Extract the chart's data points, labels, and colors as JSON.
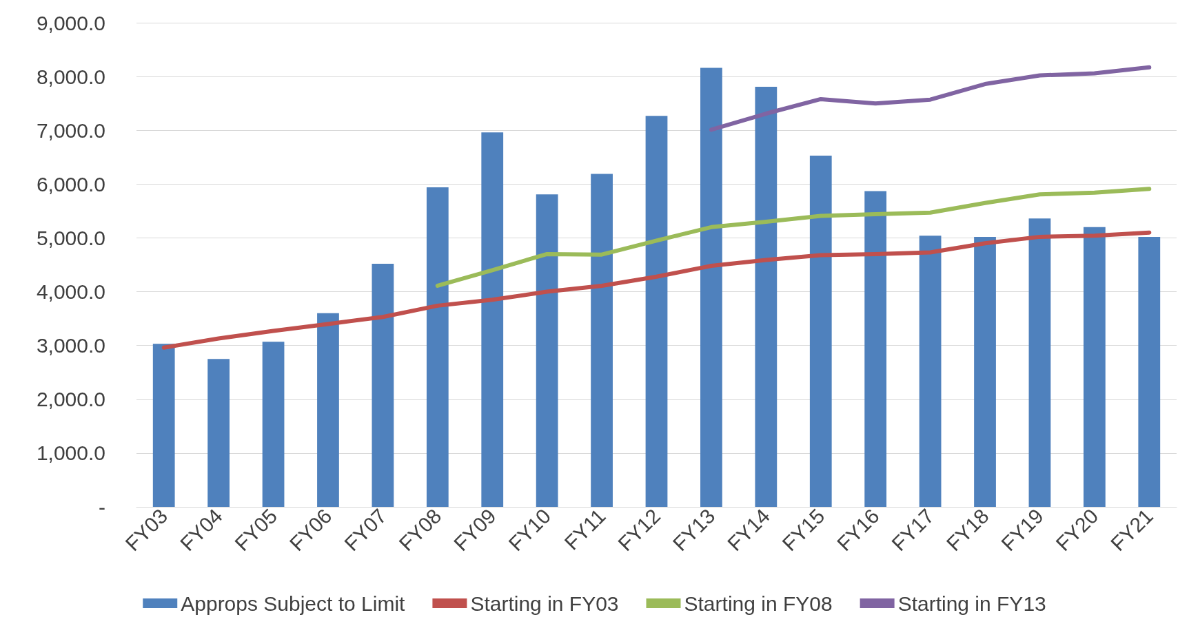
{
  "chart_data": {
    "type": "bar",
    "categories": [
      "FY03",
      "FY04",
      "FY05",
      "FY06",
      "FY07",
      "FY08",
      "FY09",
      "FY10",
      "FY11",
      "FY12",
      "FY13",
      "FY14",
      "FY15",
      "FY16",
      "FY17",
      "FY18",
      "FY19",
      "FY20",
      "FY21"
    ],
    "series": [
      {
        "name": "Approps Subject to Limit",
        "color": "#4f81bd",
        "values": [
          3030,
          2750,
          3070,
          3600,
          4520,
          5940,
          6960,
          5810,
          6190,
          7270,
          8160,
          7810,
          6530,
          5870,
          5040,
          5020,
          5360,
          5200,
          5020
        ]
      },
      {
        "name": "Starting in FY03",
        "type": "line",
        "color": "#c0504d",
        "values": [
          2960,
          3130,
          3270,
          3400,
          3530,
          3740,
          3850,
          4000,
          4110,
          4280,
          4480,
          4590,
          4680,
          4700,
          4730,
          4900,
          5020,
          5040,
          5100
        ]
      },
      {
        "name": "Starting in FY08",
        "type": "line",
        "color": "#9bbb59",
        "values": [
          null,
          null,
          null,
          null,
          null,
          4110,
          4400,
          4700,
          4690,
          4950,
          5200,
          5300,
          5410,
          5440,
          5470,
          5650,
          5810,
          5840,
          5910
        ]
      },
      {
        "name": "Starting in FY13",
        "type": "line",
        "color": "#8064a2",
        "values": [
          null,
          null,
          null,
          null,
          null,
          null,
          null,
          null,
          null,
          null,
          7010,
          7310,
          7580,
          7500,
          7570,
          7860,
          8020,
          8060,
          8170
        ]
      }
    ],
    "ylim": [
      0,
      9000
    ],
    "yticks": [
      {
        "value": 0,
        "label": "-"
      },
      {
        "value": 1000,
        "label": "1,000.0"
      },
      {
        "value": 2000,
        "label": "2,000.0"
      },
      {
        "value": 3000,
        "label": "3,000.0"
      },
      {
        "value": 4000,
        "label": "4,000.0"
      },
      {
        "value": 5000,
        "label": "5,000.0"
      },
      {
        "value": 6000,
        "label": "6,000.0"
      },
      {
        "value": 7000,
        "label": "7,000.0"
      },
      {
        "value": 8000,
        "label": "8,000.0"
      },
      {
        "value": 9000,
        "label": "9,000.0"
      }
    ],
    "grid": "y",
    "legend": "bottom",
    "marker": "none",
    "line_style": "solid"
  }
}
